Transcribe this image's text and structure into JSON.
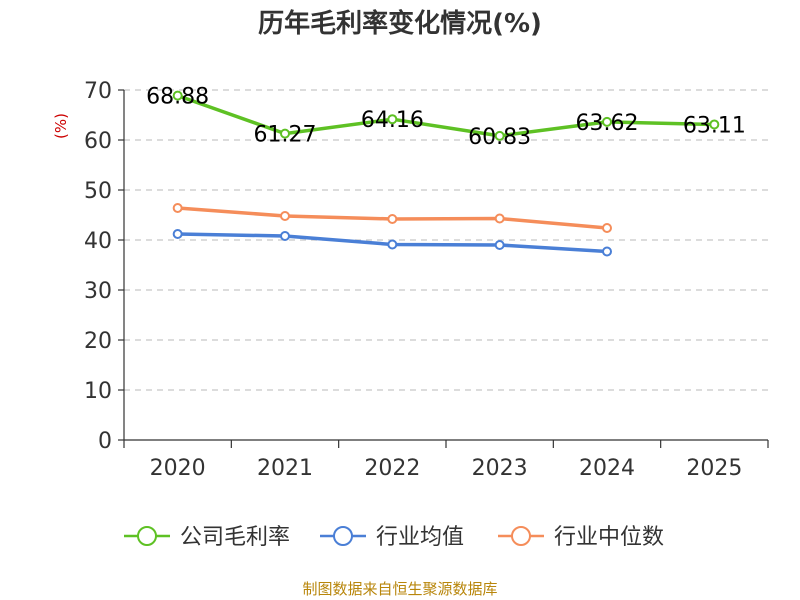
{
  "chart_data": {
    "type": "line",
    "title": "历年毛利率变化情况(%)",
    "ylabel": "(%)",
    "xlabel": "",
    "categories": [
      "2020",
      "2021",
      "2022",
      "2023",
      "2024",
      "2025"
    ],
    "ylim": [
      0,
      70
    ],
    "yticks": [
      "0",
      "10",
      "20",
      "30",
      "40",
      "50",
      "60",
      "70"
    ],
    "grid": true,
    "legend_position": "bottom",
    "series": [
      {
        "name": "公司毛利率",
        "color": "#5ec124",
        "values": [
          68.88,
          61.27,
          64.16,
          60.83,
          63.62,
          63.11
        ],
        "labels": [
          "68.88",
          "61.27",
          "64.16",
          "60.83",
          "63.62",
          "63.11"
        ]
      },
      {
        "name": "行业均值",
        "color": "#4a7fd6",
        "values": [
          41.2,
          40.8,
          39.1,
          39.0,
          37.7,
          null
        ]
      },
      {
        "name": "行业中位数",
        "color": "#f58d5a",
        "values": [
          46.4,
          44.8,
          44.2,
          44.3,
          42.4,
          null
        ]
      }
    ]
  },
  "source": "制图数据来自恒生聚源数据库"
}
